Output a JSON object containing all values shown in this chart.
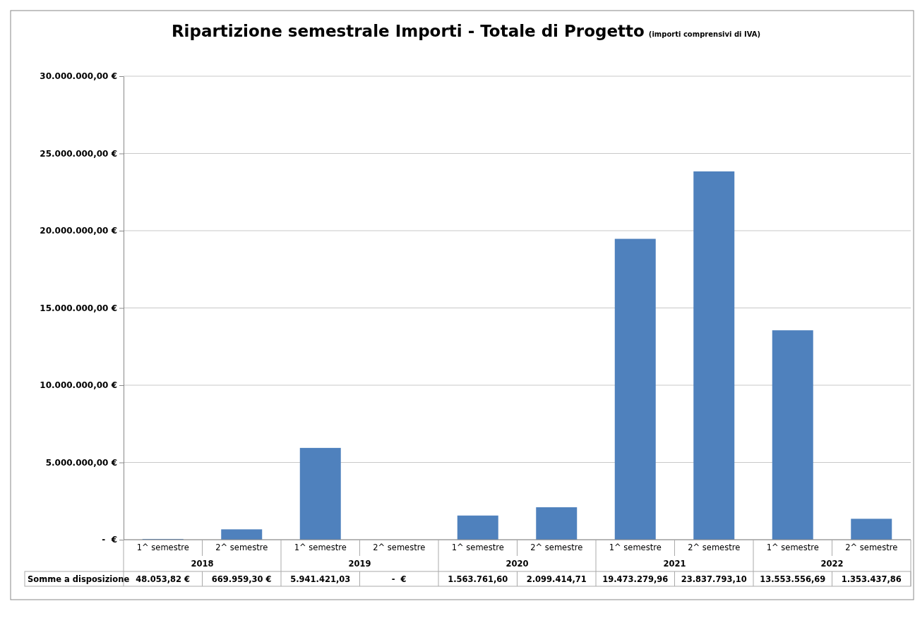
{
  "chart_data": {
    "type": "bar",
    "title": "Ripartizione semestrale Importi - Totale di Progetto",
    "subtitle": "(importi comprensivi di IVA)",
    "categories": [
      "1^ semestre",
      "2^ semestre",
      "1^ semestre",
      "2^ semestre",
      "1^ semestre",
      "2^ semestre",
      "1^ semestre",
      "2^ semestre",
      "1^ semestre",
      "2^ semestre"
    ],
    "annotations": [
      "2018",
      "2019",
      "2020",
      "2021",
      "2022"
    ],
    "series": [
      {
        "name": "Somme a disposizione",
        "color": "#4f81bd",
        "values": [
          48053.82,
          669959.3,
          5941421.03,
          0,
          1563761.6,
          2099414.71,
          19473279.96,
          23837793.1,
          13553556.69,
          1353437.86
        ],
        "value_labels": [
          "48.053,82 €",
          "669.959,30 €",
          "5.941.421,03",
          "-  €",
          "1.563.761,60",
          "2.099.414,71",
          "19.473.279,96",
          "23.837.793,10",
          "13.553.556,69",
          "1.353.437,86"
        ]
      }
    ],
    "ylim": [
      0,
      30000000
    ],
    "yticks": [
      {
        "value": 0,
        "label": "-  €"
      },
      {
        "value": 5000000,
        "label": "5.000.000,00 €"
      },
      {
        "value": 10000000,
        "label": "10.000.000,00 €"
      },
      {
        "value": 15000000,
        "label": "15.000.000,00 €"
      },
      {
        "value": 20000000,
        "label": "20.000.000,00 €"
      },
      {
        "value": 25000000,
        "label": "25.000.000,00 €"
      },
      {
        "value": 30000000,
        "label": "30.000.000,00 €"
      }
    ],
    "grid": "y"
  }
}
